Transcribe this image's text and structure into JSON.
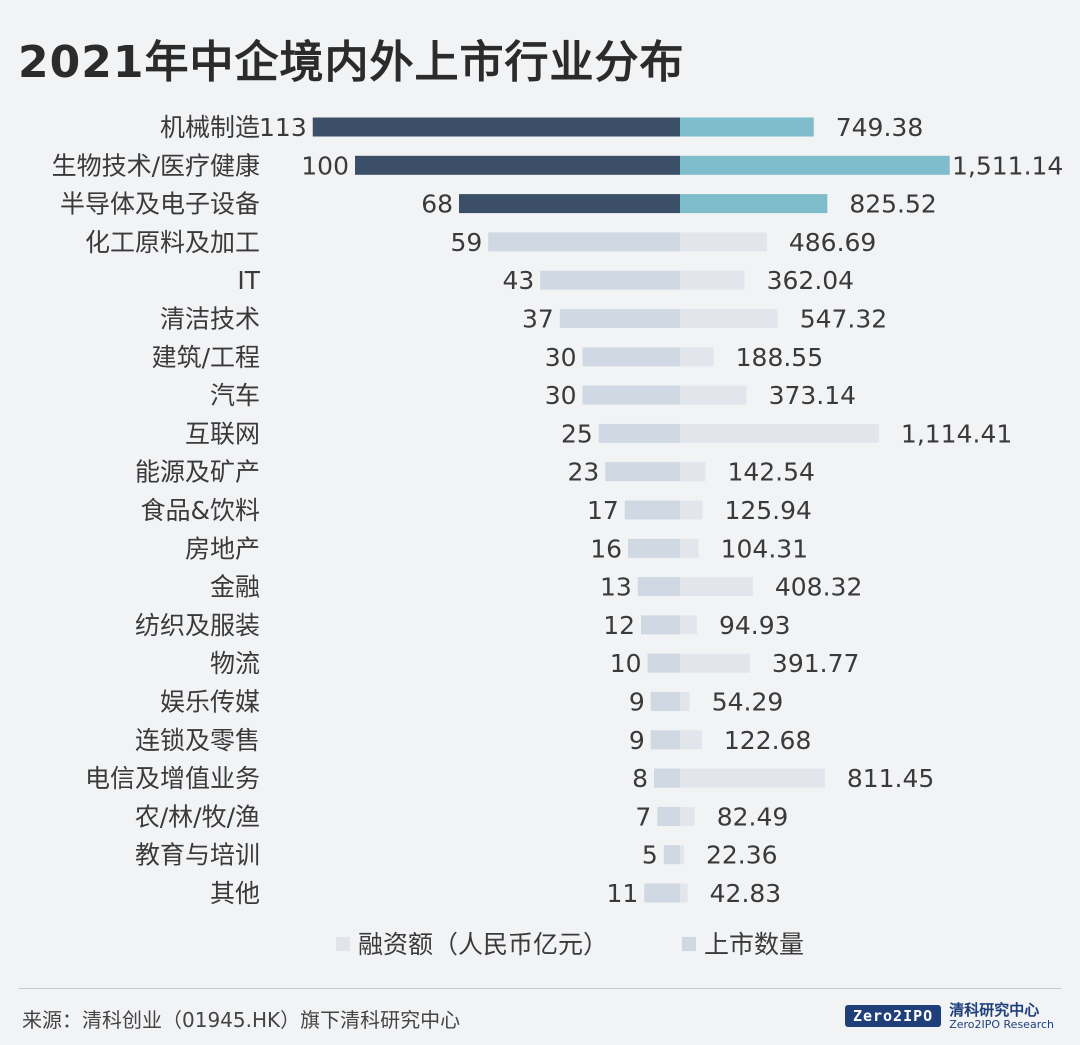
{
  "title": "2021年中企境内外上市行业分布",
  "chart_data": {
    "type": "bar",
    "orientation": "horizontal-diverging",
    "categories": [
      "机械制造",
      "生物技术/医疗健康",
      "半导体及电子设备",
      "化工原料及加工",
      "IT",
      "清洁技术",
      "建筑/工程",
      "汽车",
      "互联网",
      "能源及矿产",
      "食品&饮料",
      "房地产",
      "金融",
      "纺织及服装",
      "物流",
      "娱乐传媒",
      "连锁及零售",
      "电信及增值业务",
      "农/林/牧/渔",
      "教育与培训",
      "其他"
    ],
    "series": [
      {
        "name": "上市数量",
        "side": "left",
        "values": [
          113,
          100,
          68,
          59,
          43,
          37,
          30,
          30,
          25,
          23,
          17,
          16,
          13,
          12,
          10,
          9,
          9,
          8,
          7,
          5,
          11
        ],
        "labels": [
          "113",
          "100",
          "68",
          "59",
          "43",
          "37",
          "30",
          "30",
          "25",
          "23",
          "17",
          "16",
          "13",
          "12",
          "10",
          "9",
          "9",
          "8",
          "7",
          "5",
          "11"
        ]
      },
      {
        "name": "融资额（人民币亿元）",
        "side": "right",
        "values": [
          749.38,
          1511.14,
          825.52,
          486.69,
          362.04,
          547.32,
          188.55,
          373.14,
          1114.41,
          142.54,
          125.94,
          104.31,
          408.32,
          94.93,
          391.77,
          54.29,
          122.68,
          811.45,
          82.49,
          22.36,
          42.83
        ],
        "labels": [
          "749.38",
          "1,511.14",
          "825.52",
          "486.69",
          "362.04",
          "547.32",
          "188.55",
          "373.14",
          "1,114.41",
          "142.54",
          "125.94",
          "104.31",
          "408.32",
          "94.93",
          "391.77",
          "54.29",
          "122.68",
          "811.45",
          "82.49",
          "22.36",
          "42.83"
        ]
      }
    ],
    "highlight_count": 3,
    "colors": {
      "left_highlight": "#3b5068",
      "right_highlight": "#7fbccc",
      "left_muted": "#cfd8e3",
      "right_muted": "#e2e6ec"
    },
    "legend": {
      "position": "bottom",
      "items": [
        "融资额（人民币亿元）",
        "上市数量"
      ],
      "swatch_colors": [
        "#e2e6ec",
        "#cfd8e3"
      ]
    }
  },
  "footer": {
    "source": "来源：清科创业（01945.HK）旗下清科研究中心",
    "brand_logo": "Zero2IPO",
    "brand_cn": "清科研究中心",
    "brand_en": "Zero2IPO Research"
  }
}
